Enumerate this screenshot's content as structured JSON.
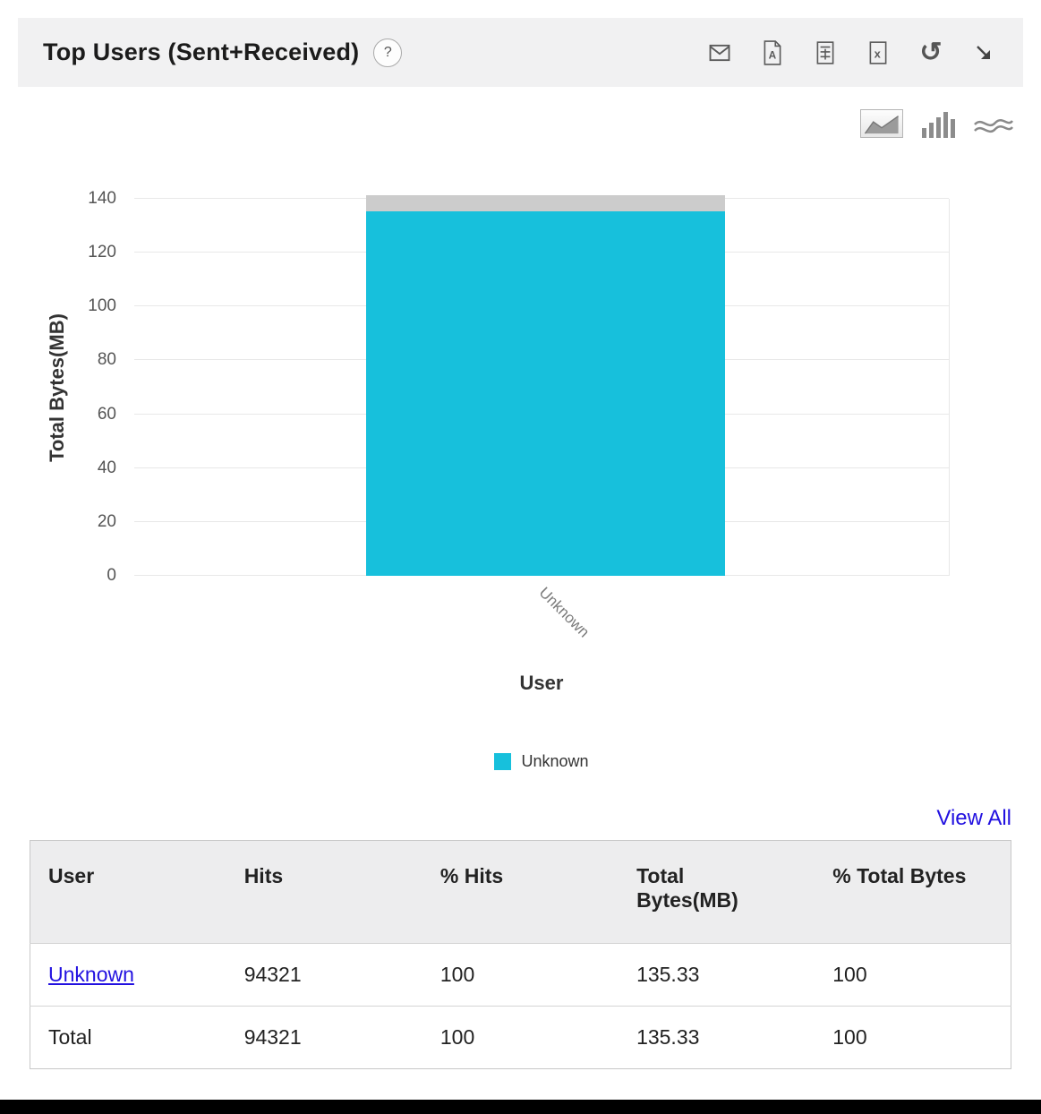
{
  "header": {
    "title": "Top Users (Sent+Received)",
    "help_label": "?",
    "icons": [
      "email-icon",
      "pdf-icon",
      "report-icon",
      "excel-icon",
      "refresh-icon",
      "expand-icon"
    ]
  },
  "chart_switcher": {
    "options": [
      "area-chart",
      "bar-chart",
      "stream-chart"
    ],
    "selected": "area-chart"
  },
  "chart_data": {
    "type": "bar",
    "title": "Top Users (Sent+Received)",
    "categories": [
      "Unknown"
    ],
    "series": [
      {
        "name": "Unknown",
        "values": [
          135.33
        ],
        "color": "#17c0dc"
      }
    ],
    "overflow_cap": {
      "total": 141.4,
      "color": "#cccccc"
    },
    "xlabel": "User",
    "ylabel": "Total Bytes(MB)",
    "ylim": [
      0,
      140
    ],
    "yticks": [
      0,
      20,
      40,
      60,
      80,
      100,
      120,
      140
    ],
    "grid": "horizontal",
    "legend": [
      {
        "label": "Unknown",
        "color": "#17c0dc"
      }
    ],
    "legend_position": "bottom"
  },
  "view_all_label": "View All",
  "table": {
    "headers": [
      "User",
      "Hits",
      "% Hits",
      "Total Bytes(MB)",
      "% Total Bytes"
    ],
    "rows": [
      [
        "Unknown",
        "94321",
        "100",
        "135.33",
        "100"
      ],
      [
        "Total",
        "94321",
        "100",
        "135.33",
        "100"
      ]
    ]
  },
  "colors": {
    "accent": "#17c0dc",
    "cap": "#cccccc",
    "link": "#2211e0",
    "header_bg": "#f1f1f2",
    "table_header_bg": "#ededee"
  }
}
